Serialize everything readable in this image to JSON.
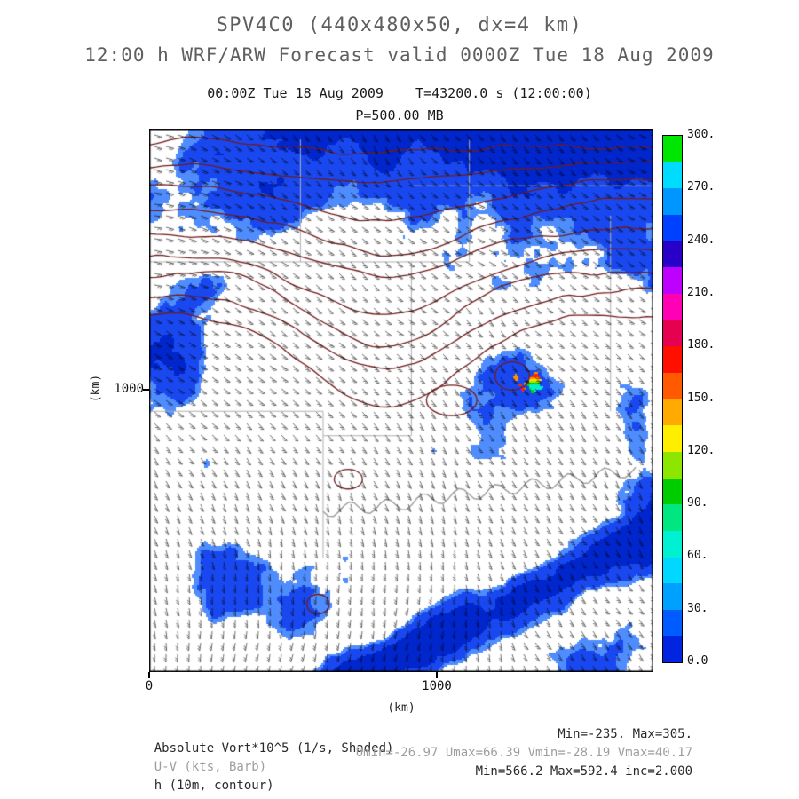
{
  "header": {
    "title": "SPV4C0 (440x480x50, dx=4 km)",
    "subtitle": "12:00 h WRF/ARW Forecast valid 0000Z Tue 18 Aug 2009",
    "time_line": "00:00Z Tue 18 Aug 2009    T=43200.0 s (12:00:00)",
    "level_line": "P=500.00 MB"
  },
  "chart_data": {
    "type": "heatmap",
    "title": "SPV4C0 (440x480x50, dx=4 km)",
    "subtitle": "12:00 h WRF/ARW Forecast valid 0000Z Tue 18 Aug 2009",
    "valid_time": "00:00Z Tue 18 Aug 2009",
    "model_time": "T=43200.0 s (12:00:00)",
    "pressure_level": "P=500.00 MB",
    "grid_info": "440x480x50, dx=4 km",
    "xlabel": "(km)",
    "ylabel": "(km)",
    "xlim": [
      0,
      1760
    ],
    "ylim": [
      0,
      1920
    ],
    "xticks": [
      0,
      1000
    ],
    "yticks": [
      0,
      1000
    ],
    "xtick_labels": [
      "0",
      "1000"
    ],
    "ytick_labels": [
      "1000"
    ],
    "fields": [
      {
        "name": "Absolute Vort*10^5 (1/s, Shaded)",
        "min": -235,
        "max": 305
      },
      {
        "name": "U-V (kts, Barb)",
        "umin": -26.97,
        "umax": 66.39,
        "vmin": -28.19,
        "vmax": 40.17
      },
      {
        "name": "h (10m, contour)",
        "min": 566.2,
        "max": 592.4,
        "inc": 2.0
      }
    ],
    "colorbar": {
      "ticks": [
        "0.0",
        "30.",
        "60.",
        "90.",
        "120.",
        "150.",
        "180.",
        "210.",
        "240.",
        "270.",
        "300."
      ],
      "tick_values": [
        0,
        30,
        60,
        90,
        120,
        150,
        180,
        210,
        240,
        270,
        300
      ],
      "range": [
        0,
        300
      ],
      "segment_colors": [
        "#0024e0",
        "#005cff",
        "#00a0ff",
        "#00d8ff",
        "#00f0d2",
        "#00e680",
        "#00cc00",
        "#8ce600",
        "#ffee00",
        "#ffaa00",
        "#ff5a00",
        "#ff0f00",
        "#e60050",
        "#ff00b4",
        "#be00ff",
        "#2800c8",
        "#0041ff",
        "#0096ff",
        "#00dcff",
        "#00e600"
      ]
    },
    "colors": {
      "map_light": "#4f8dff",
      "map_mid": "#1a48f0",
      "map_dark": "#0026cc",
      "specks": [
        "#00e6ff",
        "#00f0c8",
        "#00d400",
        "#a0e800",
        "#ffe000",
        "#ff9000",
        "#ff2800",
        "#ff00c8"
      ],
      "contour": "#701c1c",
      "map_boundary": "#b0b0b0",
      "river": "#9c9c9c",
      "barb": "#000000",
      "frame": "#000000"
    }
  },
  "footer": {
    "rows": [
      {
        "label": "Absolute Vort*10^5 (1/s, Shaded)",
        "stats": "Min=-235. Max=305."
      },
      {
        "label": "U-V (kts, Barb)",
        "stats": "Umin=-26.97 Umax=66.39 Vmin=-28.19 Vmax=40.17"
      },
      {
        "label": "h (10m, contour)",
        "stats": "Min=566.2 Max=592.4 inc=2.000"
      }
    ]
  }
}
